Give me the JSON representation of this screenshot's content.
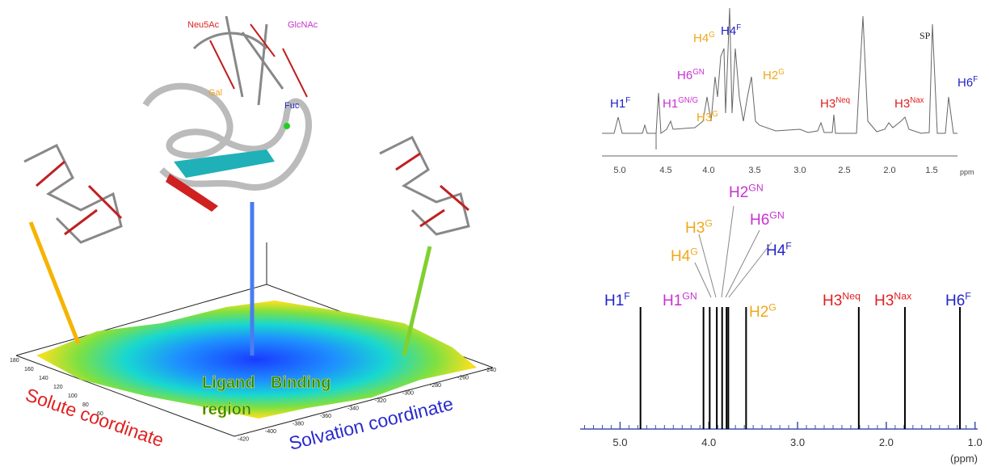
{
  "left": {
    "residues": [
      "Neu5Ac",
      "GlcNAc",
      "Gal",
      "Fuc"
    ],
    "solute_ticks": [
      "180",
      "160",
      "140",
      "120",
      "100",
      "80",
      "60"
    ],
    "solvation_ticks": [
      "-240",
      "-260",
      "-280",
      "-300",
      "-320",
      "-340",
      "-360",
      "-380",
      "-400",
      "-420"
    ],
    "region_label": [
      "Ligand",
      "Binding",
      "region"
    ],
    "solute_axis": "Solute coordinate",
    "solvation_axis": "Solvation coordinate"
  },
  "top_spectrum": {
    "ticks": [
      "5.0",
      "4.5",
      "4.0",
      "3.5",
      "3.0",
      "2.5",
      "2.0",
      "1.5"
    ],
    "unit": "ppm",
    "sp": "SP",
    "labels": [
      {
        "base": "H1",
        "sup": "F"
      },
      {
        "base": "H1",
        "sup": "GN/G"
      },
      {
        "base": "H3",
        "sup": "G"
      },
      {
        "base": "H6",
        "sup": "GN"
      },
      {
        "base": "H4",
        "sup": "G"
      },
      {
        "base": "H4",
        "sup": "F"
      },
      {
        "base": "H2",
        "sup": "G"
      },
      {
        "base": "H3",
        "sup": "Neq"
      },
      {
        "base": "H3",
        "sup": "Nax"
      },
      {
        "base": "H6",
        "sup": "F"
      }
    ]
  },
  "stick_spectrum": {
    "xlim": [
      5.45,
      0.97
    ],
    "xticks": [
      {
        "value": 5,
        "label": "5.0"
      },
      {
        "value": 4,
        "label": "4.0"
      },
      {
        "value": 3,
        "label": "3.0"
      },
      {
        "value": 2,
        "label": "2.0"
      },
      {
        "value": 1,
        "label": "1.0"
      }
    ],
    "unit": "(ppm)",
    "peaks": [
      4.77,
      4.06,
      3.99,
      3.91,
      3.85,
      3.8,
      3.78,
      3.58,
      2.31,
      1.79,
      1.17
    ],
    "labels": [
      {
        "base": "H1",
        "sup": "F"
      },
      {
        "base": "H1",
        "sup": "GN"
      },
      {
        "base": "H4",
        "sup": "G"
      },
      {
        "base": "H3",
        "sup": "G"
      },
      {
        "base": "H2",
        "sup": "GN"
      },
      {
        "base": "H6",
        "sup": "GN"
      },
      {
        "base": "H4",
        "sup": "F"
      },
      {
        "base": "H2",
        "sup": "G"
      },
      {
        "base": "H3",
        "sup": "Neq"
      },
      {
        "base": "H3",
        "sup": "Nax"
      },
      {
        "base": "H6",
        "sup": "F"
      }
    ]
  }
}
